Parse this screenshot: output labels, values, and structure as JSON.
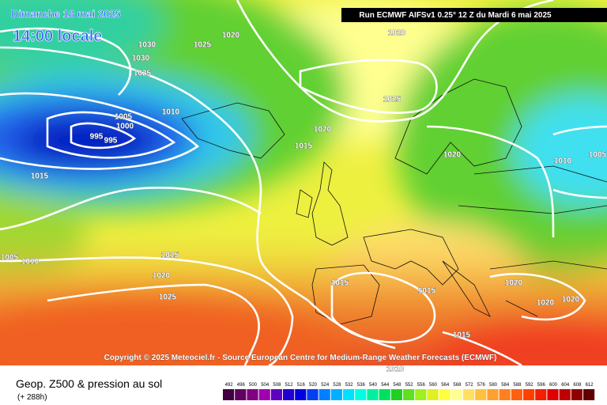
{
  "header": {
    "date": "Dimanche 18 mai 2025",
    "time": "14:00 locale",
    "run": "Run ECMWF AIFSv1 0.25° 12 Z du Mardi 6 mai 2025"
  },
  "copyright": "Copyright © 2025 Meteociel.fr - Source European Centre for Medium-Range Weather Forecasts (ECMWF)",
  "isobar_labels": [
    1030,
    1025,
    1020,
    1020,
    1030,
    1025,
    1010,
    1005,
    1000,
    995,
    995,
    1020,
    1015,
    1025,
    1020,
    1010,
    1005,
    1015,
    1015,
    1020,
    1025,
    1005,
    1010,
    1015,
    1015,
    1020,
    1020,
    1020,
    1015,
    1010
  ],
  "footer": {
    "title": "Geop. Z500 & pression au sol",
    "lead": "(+ 288h)"
  },
  "legend": {
    "values": [
      492,
      496,
      500,
      504,
      508,
      512,
      516,
      520,
      524,
      528,
      532,
      536,
      540,
      544,
      548,
      552,
      556,
      560,
      564,
      568,
      572,
      576,
      580,
      584,
      588,
      592,
      596,
      600,
      604,
      608,
      612
    ],
    "colors": [
      "#400040",
      "#600060",
      "#800080",
      "#a000b0",
      "#6000c0",
      "#2000d0",
      "#0000e0",
      "#0040f0",
      "#0080ff",
      "#00b0ff",
      "#00e0ff",
      "#00ffe0",
      "#00f0a0",
      "#00e060",
      "#20d020",
      "#60e020",
      "#a0f020",
      "#e0f020",
      "#ffff40",
      "#ffff90",
      "#ffe060",
      "#ffc040",
      "#ffa030",
      "#ff8020",
      "#ff6010",
      "#ff4000",
      "#f02000",
      "#e00000",
      "#c00000",
      "#900000",
      "#600000"
    ]
  }
}
